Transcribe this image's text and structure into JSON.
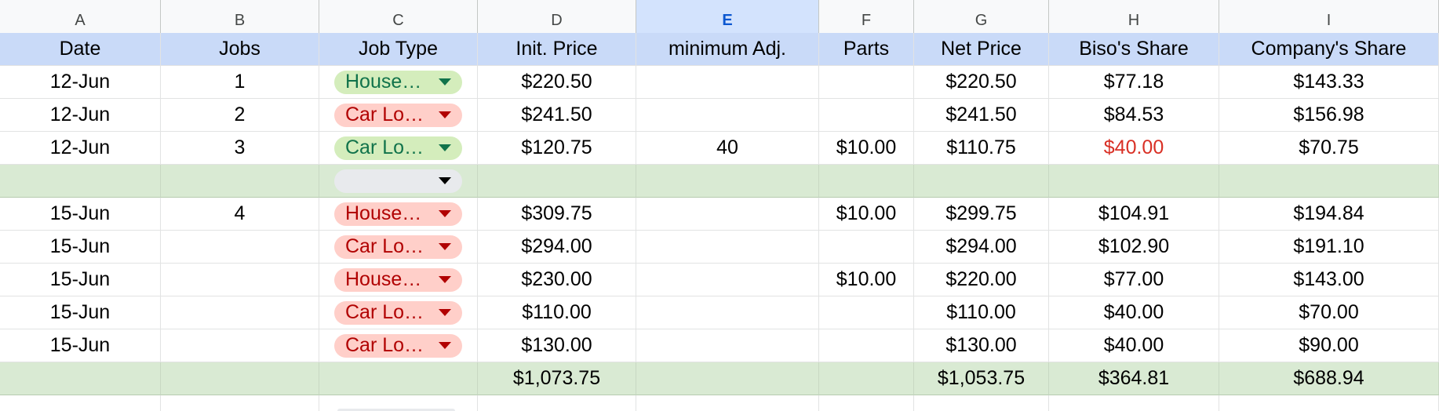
{
  "colors": {
    "header_fill": "#c9daf8",
    "separator_fill": "#d9ead3",
    "chip_green": "#d4edbc",
    "chip_red": "#ffcfc9",
    "highlight_text": "#d93025"
  },
  "column_letters": [
    "A",
    "B",
    "C",
    "D",
    "E",
    "F",
    "G",
    "H",
    "I"
  ],
  "selected_column": "E",
  "headers": [
    "Date",
    "Jobs",
    "Job Type",
    "Init. Price",
    "minimum Adj.",
    "Parts",
    "Net Price",
    "Biso's Share",
    "Company's Share"
  ],
  "rows": [
    {
      "date": "12-Jun",
      "jobs": "1",
      "job_type": "House…",
      "chip": "green",
      "init_price": "$220.50",
      "min_adj": "",
      "parts": "",
      "net_price": "$220.50",
      "biso_share": "$77.18",
      "company_share": "$143.33"
    },
    {
      "date": "12-Jun",
      "jobs": "2",
      "job_type": "Car Lo…",
      "chip": "red",
      "init_price": "$241.50",
      "min_adj": "",
      "parts": "",
      "net_price": "$241.50",
      "biso_share": "$84.53",
      "company_share": "$156.98"
    },
    {
      "date": "12-Jun",
      "jobs": "3",
      "job_type": "Car Lo…",
      "chip": "green",
      "init_price": "$120.75",
      "min_adj": "40",
      "parts": "$10.00",
      "net_price": "$110.75",
      "biso_share": "$40.00",
      "company_share": "$70.75"
    },
    {
      "date": "",
      "jobs": "",
      "job_type": "",
      "chip": "empty",
      "init_price": "",
      "min_adj": "",
      "parts": "",
      "net_price": "",
      "biso_share": "",
      "company_share": ""
    },
    {
      "date": "15-Jun",
      "jobs": "4",
      "job_type": "House…",
      "chip": "red",
      "init_price": "$309.75",
      "min_adj": "",
      "parts": "$10.00",
      "net_price": "$299.75",
      "biso_share": "$104.91",
      "company_share": "$194.84"
    },
    {
      "date": "15-Jun",
      "jobs": "",
      "job_type": "Car Lo…",
      "chip": "red",
      "init_price": "$294.00",
      "min_adj": "",
      "parts": "",
      "net_price": "$294.00",
      "biso_share": "$102.90",
      "company_share": "$191.10"
    },
    {
      "date": "15-Jun",
      "jobs": "",
      "job_type": "House…",
      "chip": "red",
      "init_price": "$230.00",
      "min_adj": "",
      "parts": "$10.00",
      "net_price": "$220.00",
      "biso_share": "$77.00",
      "company_share": "$143.00"
    },
    {
      "date": "15-Jun",
      "jobs": "",
      "job_type": "Car Lo…",
      "chip": "red",
      "init_price": "$110.00",
      "min_adj": "",
      "parts": "",
      "net_price": "$110.00",
      "biso_share": "$40.00",
      "company_share": "$70.00"
    },
    {
      "date": "15-Jun",
      "jobs": "",
      "job_type": "Car Lo…",
      "chip": "red",
      "init_price": "$130.00",
      "min_adj": "",
      "parts": "",
      "net_price": "$130.00",
      "biso_share": "$40.00",
      "company_share": "$90.00"
    }
  ],
  "totals": {
    "init_price": "$1,073.75",
    "net_price": "$1,053.75",
    "biso_share": "$364.81",
    "company_share": "$688.94"
  }
}
